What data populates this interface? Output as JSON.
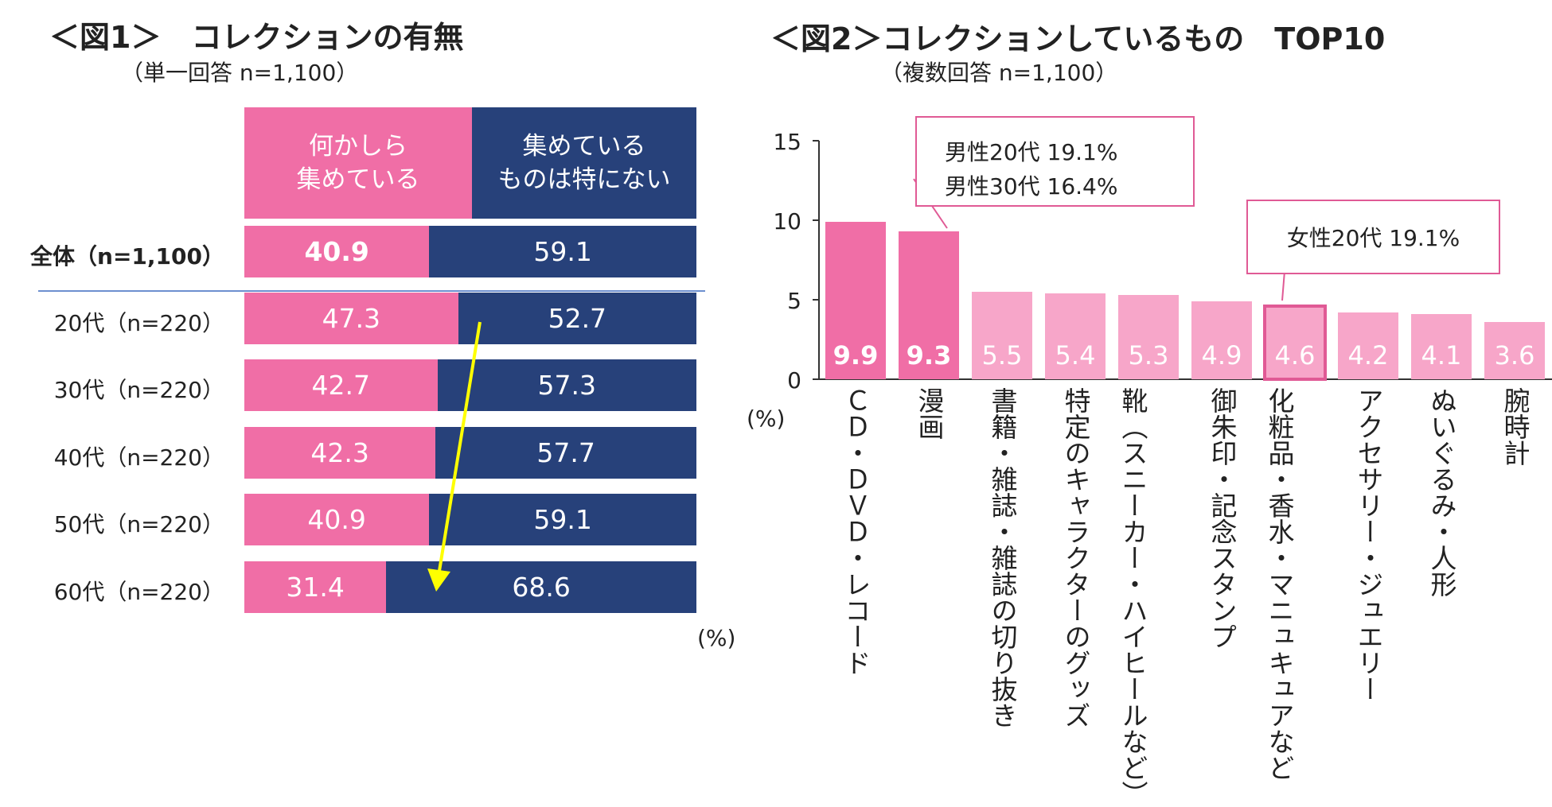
{
  "fig1": {
    "title": "＜図1＞　コレクションの有無",
    "subtitle": "（単一回答 n=1,100）",
    "header_pink": [
      "何かしら",
      "集めている"
    ],
    "header_navy": [
      "集めている",
      "ものは特にない"
    ],
    "unit": "(%)"
  },
  "fig2": {
    "title": "＜図2＞コレクションしているもの　TOP10",
    "subtitle": "（複数回答 n=1,100）",
    "ylabel_unit": "(%)",
    "callout1": [
      "男性20代  19.1%",
      "男性30代  16.4%"
    ],
    "callout2": "女性20代  19.1%"
  },
  "chart_data": [
    {
      "type": "bar",
      "orientation": "horizontal",
      "stacked": true,
      "title": "＜図1＞　コレクションの有無",
      "subtitle": "（単一回答 n=1,100）",
      "categories": [
        "全体（n=1,100）",
        "20代（n=220）",
        "30代（n=220）",
        "40代（n=220）",
        "50代（n=220）",
        "60代（n=220）"
      ],
      "series": [
        {
          "name": "何かしら集めている",
          "values": [
            40.9,
            47.3,
            42.7,
            42.3,
            40.9,
            31.4
          ],
          "color": "#f06ea6"
        },
        {
          "name": "集めているものは特にない",
          "values": [
            59.1,
            52.7,
            57.3,
            57.7,
            59.1,
            68.6
          ],
          "color": "#27417a"
        }
      ],
      "xlim": [
        0,
        100
      ],
      "unit": "(%)",
      "annotation": "yellow arrow pointing downward from 20代 to 60代"
    },
    {
      "type": "bar",
      "title": "＜図2＞コレクションしているもの　TOP10",
      "subtitle": "（複数回答 n=1,100）",
      "categories": [
        "ＣＤ・ＤＶＤ・レコード",
        "漫画",
        "書籍・雑誌・雑誌の切り抜き",
        "特定のキャラクターのグッズ",
        "靴（スニーカー・ハイヒールなど）",
        "御朱印・記念スタンプ",
        "化粧品・香水・マニュキュアなど",
        "アクセサリー・ジュエリー",
        "ぬいぐるみ・人形",
        "腕時計"
      ],
      "values": [
        9.9,
        9.3,
        5.5,
        5.4,
        5.3,
        4.9,
        4.6,
        4.2,
        4.1,
        3.6
      ],
      "ylim": [
        0,
        15
      ],
      "yticks": [
        0,
        5,
        10,
        15
      ],
      "ylabel": "(%)",
      "colors": {
        "highlight": "#f06ea6",
        "normal": "#f7a6c9",
        "outline": "#e05a95"
      },
      "annotations": [
        "男性20代  19.1%",
        "男性30代  16.4%",
        "女性20代  19.1%"
      ]
    }
  ]
}
